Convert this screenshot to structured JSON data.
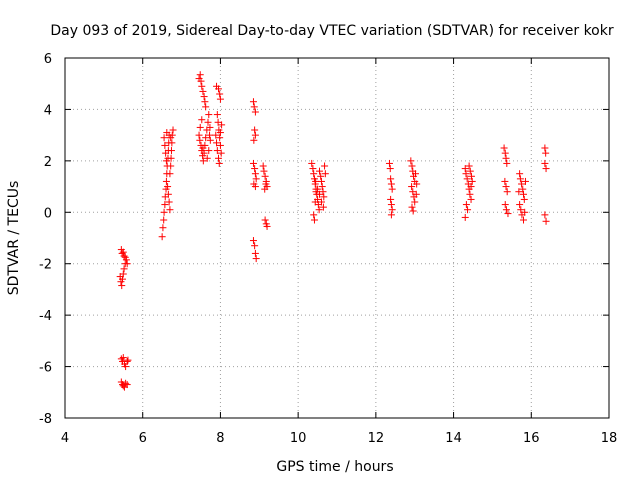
{
  "chart_data": {
    "type": "scatter",
    "title": "Day 093 of 2019, Sidereal Day-to-day VTEC variation (SDTVAR) for receiver kokr",
    "xlabel": "GPS time / hours",
    "ylabel": "SDTVAR / TECUs",
    "xlim": [
      4,
      18
    ],
    "ylim": [
      -8,
      6
    ],
    "xticks": [
      4,
      6,
      8,
      10,
      12,
      14,
      16,
      18
    ],
    "yticks": [
      -8,
      -6,
      -4,
      -2,
      0,
      2,
      4,
      6
    ],
    "xtick_labels": [
      "4",
      "6",
      "8",
      "10",
      "12",
      "14",
      "16",
      "18"
    ],
    "ytick_labels": [
      "-8",
      "-6",
      "-4",
      "-2",
      "0",
      "2",
      "4",
      "6"
    ],
    "grid": true,
    "marker": "plus",
    "color": "#ff0000",
    "series": [
      {
        "name": "kokr",
        "points": [
          [
            5.45,
            -1.45
          ],
          [
            5.47,
            -1.6
          ],
          [
            5.5,
            -1.55
          ],
          [
            5.52,
            -1.7
          ],
          [
            5.55,
            -1.75
          ],
          [
            5.58,
            -1.85
          ],
          [
            5.6,
            -2.0
          ],
          [
            5.42,
            -2.5
          ],
          [
            5.44,
            -2.7
          ],
          [
            5.46,
            -2.85
          ],
          [
            5.48,
            -2.6
          ],
          [
            5.5,
            -2.4
          ],
          [
            5.52,
            -2.2
          ],
          [
            5.55,
            -2.0
          ],
          [
            5.45,
            -5.7
          ],
          [
            5.48,
            -5.8
          ],
          [
            5.5,
            -5.65
          ],
          [
            5.53,
            -5.9
          ],
          [
            5.56,
            -6.0
          ],
          [
            5.6,
            -5.8
          ],
          [
            5.62,
            -5.75
          ],
          [
            5.45,
            -6.6
          ],
          [
            5.48,
            -6.7
          ],
          [
            5.5,
            -6.75
          ],
          [
            5.53,
            -6.8
          ],
          [
            5.56,
            -6.65
          ],
          [
            5.6,
            -6.7
          ],
          [
            6.5,
            -0.95
          ],
          [
            6.52,
            -0.6
          ],
          [
            6.54,
            -0.3
          ],
          [
            6.55,
            0.0
          ],
          [
            6.57,
            0.3
          ],
          [
            6.58,
            0.6
          ],
          [
            6.6,
            0.9
          ],
          [
            6.61,
            1.2
          ],
          [
            6.62,
            1.5
          ],
          [
            6.63,
            1.8
          ],
          [
            6.65,
            2.1
          ],
          [
            6.66,
            2.4
          ],
          [
            6.67,
            2.7
          ],
          [
            6.68,
            3.0
          ],
          [
            6.55,
            2.9
          ],
          [
            6.57,
            2.6
          ],
          [
            6.59,
            2.3
          ],
          [
            6.61,
            2.0
          ],
          [
            6.7,
            1.5
          ],
          [
            6.72,
            1.8
          ],
          [
            6.73,
            2.1
          ],
          [
            6.74,
            2.4
          ],
          [
            6.75,
            2.7
          ],
          [
            6.76,
            3.0
          ],
          [
            6.78,
            3.2
          ],
          [
            6.64,
            1.0
          ],
          [
            6.66,
            0.7
          ],
          [
            6.68,
            0.4
          ],
          [
            6.7,
            0.1
          ],
          [
            6.72,
            2.9
          ],
          [
            6.62,
            3.1
          ],
          [
            7.45,
            5.2
          ],
          [
            7.48,
            5.35
          ],
          [
            7.5,
            5.1
          ],
          [
            7.52,
            4.9
          ],
          [
            7.55,
            4.7
          ],
          [
            7.58,
            4.5
          ],
          [
            7.6,
            4.3
          ],
          [
            7.62,
            4.1
          ],
          [
            7.45,
            3.0
          ],
          [
            7.47,
            2.8
          ],
          [
            7.5,
            2.6
          ],
          [
            7.52,
            2.4
          ],
          [
            7.54,
            2.2
          ],
          [
            7.56,
            2.0
          ],
          [
            7.58,
            2.3
          ],
          [
            7.6,
            2.6
          ],
          [
            7.62,
            2.9
          ],
          [
            7.65,
            3.2
          ],
          [
            7.68,
            3.5
          ],
          [
            7.7,
            3.8
          ],
          [
            7.72,
            3.0
          ],
          [
            7.74,
            2.8
          ],
          [
            7.48,
            3.3
          ],
          [
            7.52,
            3.6
          ],
          [
            7.55,
            2.5
          ],
          [
            7.66,
            2.1
          ],
          [
            7.7,
            2.4
          ],
          [
            7.73,
            3.3
          ],
          [
            7.95,
            4.8
          ],
          [
            7.98,
            4.6
          ],
          [
            8.0,
            4.4
          ],
          [
            7.9,
            4.9
          ],
          [
            7.92,
            3.8
          ],
          [
            7.94,
            3.5
          ],
          [
            7.96,
            3.2
          ],
          [
            7.98,
            2.9
          ],
          [
            8.0,
            2.6
          ],
          [
            8.02,
            2.3
          ],
          [
            7.88,
            3.0
          ],
          [
            7.9,
            2.7
          ],
          [
            7.92,
            2.4
          ],
          [
            7.95,
            2.1
          ],
          [
            7.97,
            1.9
          ],
          [
            8.0,
            3.1
          ],
          [
            8.03,
            3.4
          ],
          [
            8.85,
            4.3
          ],
          [
            8.87,
            4.1
          ],
          [
            8.9,
            3.9
          ],
          [
            8.88,
            3.2
          ],
          [
            8.9,
            3.0
          ],
          [
            8.86,
            2.8
          ],
          [
            8.85,
            1.9
          ],
          [
            8.88,
            1.7
          ],
          [
            8.9,
            1.5
          ],
          [
            8.92,
            1.3
          ],
          [
            8.86,
            1.1
          ],
          [
            8.9,
            1.0
          ],
          [
            9.1,
            1.8
          ],
          [
            9.12,
            1.6
          ],
          [
            9.15,
            1.4
          ],
          [
            9.18,
            1.2
          ],
          [
            9.2,
            1.0
          ],
          [
            9.14,
            0.9
          ],
          [
            9.17,
            1.1
          ],
          [
            8.85,
            -1.1
          ],
          [
            8.88,
            -1.3
          ],
          [
            8.9,
            -1.6
          ],
          [
            8.92,
            -1.8
          ],
          [
            9.15,
            -0.3
          ],
          [
            9.18,
            -0.45
          ],
          [
            9.2,
            -0.55
          ],
          [
            10.35,
            1.9
          ],
          [
            10.38,
            1.7
          ],
          [
            10.4,
            1.5
          ],
          [
            10.42,
            1.3
          ],
          [
            10.44,
            1.1
          ],
          [
            10.46,
            0.9
          ],
          [
            10.48,
            0.7
          ],
          [
            10.5,
            0.5
          ],
          [
            10.52,
            0.3
          ],
          [
            10.54,
            0.1
          ],
          [
            10.4,
            -0.1
          ],
          [
            10.42,
            -0.3
          ],
          [
            10.44,
            0.4
          ],
          [
            10.46,
            0.8
          ],
          [
            10.55,
            1.6
          ],
          [
            10.58,
            1.4
          ],
          [
            10.6,
            1.2
          ],
          [
            10.62,
            1.0
          ],
          [
            10.64,
            0.8
          ],
          [
            10.66,
            0.6
          ],
          [
            10.68,
            1.8
          ],
          [
            10.7,
            1.5
          ],
          [
            10.45,
            1.2
          ],
          [
            10.5,
            0.9
          ],
          [
            10.55,
            0.7
          ],
          [
            10.6,
            0.4
          ],
          [
            10.65,
            0.2
          ],
          [
            12.35,
            1.9
          ],
          [
            12.37,
            1.7
          ],
          [
            12.38,
            1.3
          ],
          [
            12.4,
            1.1
          ],
          [
            12.42,
            0.9
          ],
          [
            12.38,
            0.5
          ],
          [
            12.4,
            0.3
          ],
          [
            12.42,
            0.1
          ],
          [
            12.4,
            -0.1
          ],
          [
            12.9,
            2.0
          ],
          [
            12.93,
            1.8
          ],
          [
            12.95,
            1.6
          ],
          [
            12.97,
            1.4
          ],
          [
            13.0,
            1.2
          ],
          [
            12.92,
            1.0
          ],
          [
            12.95,
            0.8
          ],
          [
            12.98,
            0.6
          ],
          [
            13.0,
            0.4
          ],
          [
            12.93,
            0.2
          ],
          [
            12.96,
            0.05
          ],
          [
            13.02,
            1.5
          ],
          [
            13.05,
            1.1
          ],
          [
            13.04,
            0.7
          ],
          [
            14.3,
            1.7
          ],
          [
            14.32,
            1.5
          ],
          [
            14.35,
            1.3
          ],
          [
            14.38,
            1.1
          ],
          [
            14.4,
            0.9
          ],
          [
            14.42,
            0.7
          ],
          [
            14.45,
            0.5
          ],
          [
            14.33,
            0.3
          ],
          [
            14.36,
            0.1
          ],
          [
            14.3,
            -0.2
          ],
          [
            14.4,
            1.8
          ],
          [
            14.43,
            1.6
          ],
          [
            14.46,
            1.4
          ],
          [
            14.48,
            1.2
          ],
          [
            14.45,
            1.0
          ],
          [
            15.3,
            2.5
          ],
          [
            15.33,
            2.3
          ],
          [
            15.35,
            2.1
          ],
          [
            15.37,
            1.9
          ],
          [
            15.32,
            1.2
          ],
          [
            15.35,
            1.0
          ],
          [
            15.38,
            0.8
          ],
          [
            15.33,
            0.3
          ],
          [
            15.36,
            0.1
          ],
          [
            15.4,
            -0.05
          ],
          [
            15.7,
            1.5
          ],
          [
            15.72,
            1.3
          ],
          [
            15.75,
            1.1
          ],
          [
            15.78,
            0.9
          ],
          [
            15.8,
            0.7
          ],
          [
            15.82,
            0.5
          ],
          [
            15.7,
            0.3
          ],
          [
            15.73,
            0.1
          ],
          [
            15.76,
            -0.1
          ],
          [
            15.8,
            -0.3
          ],
          [
            15.68,
            0.8
          ],
          [
            15.85,
            1.2
          ],
          [
            15.83,
            0.0
          ],
          [
            16.35,
            2.5
          ],
          [
            16.37,
            2.3
          ],
          [
            16.35,
            1.9
          ],
          [
            16.38,
            1.7
          ],
          [
            16.35,
            -0.1
          ],
          [
            16.38,
            -0.35
          ]
        ]
      }
    ]
  }
}
